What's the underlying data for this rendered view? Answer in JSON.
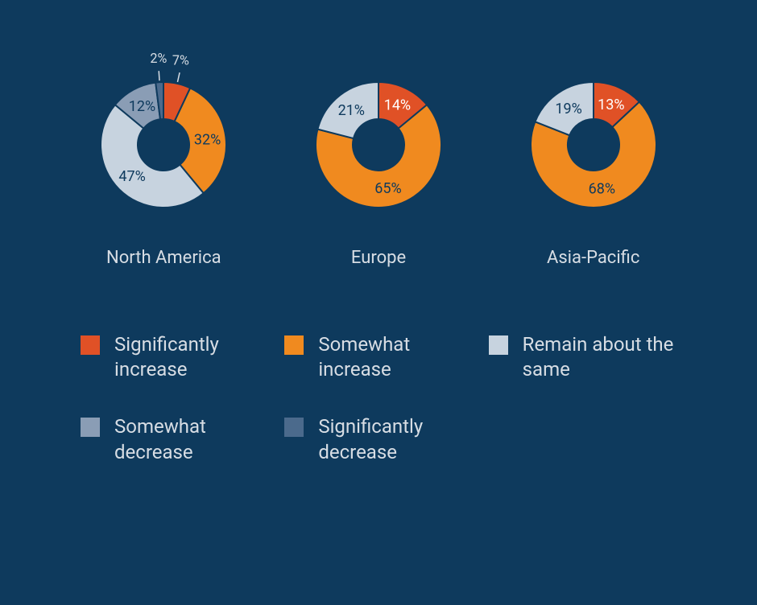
{
  "chart": {
    "type": "donut",
    "background_color": "#0e3a5d",
    "text_color": "#d7dde4",
    "label_fontsize": 18,
    "title_fontsize": 22,
    "legend_fontsize": 24,
    "donut_outer_radius": 78,
    "donut_inner_radius": 32,
    "start_angle_deg": 0,
    "donuts": [
      {
        "title": "North America",
        "slices": [
          {
            "value": 7,
            "color": "#e05126",
            "label": "7%",
            "label_scale": 0.9
          },
          {
            "value": 32,
            "color": "#f08a1f",
            "label": "32%"
          },
          {
            "value": 47,
            "color": "#c7d3df",
            "label": "47%"
          },
          {
            "value": 12,
            "color": "#8a9db5",
            "label": "12%"
          },
          {
            "value": 2,
            "color": "#4b6a8c",
            "label": "2%",
            "label_scale": 0.9
          }
        ]
      },
      {
        "title": "Europe",
        "slices": [
          {
            "value": 14,
            "color": "#e05126",
            "label": "14%"
          },
          {
            "value": 65,
            "color": "#f08a1f",
            "label": "65%"
          },
          {
            "value": 21,
            "color": "#c7d3df",
            "label": "21%"
          }
        ]
      },
      {
        "title": "Asia-Pacific",
        "slices": [
          {
            "value": 13,
            "color": "#e05126",
            "label": "13%"
          },
          {
            "value": 68,
            "color": "#f08a1f",
            "label": "68%"
          },
          {
            "value": 19,
            "color": "#c7d3df",
            "label": "19%"
          }
        ]
      }
    ],
    "legend": [
      {
        "color": "#e05126",
        "label": "Significantly increase"
      },
      {
        "color": "#f08a1f",
        "label": "Somewhat increase"
      },
      {
        "color": "#c7d3df",
        "label": "Remain about the same"
      },
      {
        "color": "#8a9db5",
        "label": "Somewhat decrease"
      },
      {
        "color": "#4b6a8c",
        "label": "Significantly decrease"
      }
    ]
  }
}
